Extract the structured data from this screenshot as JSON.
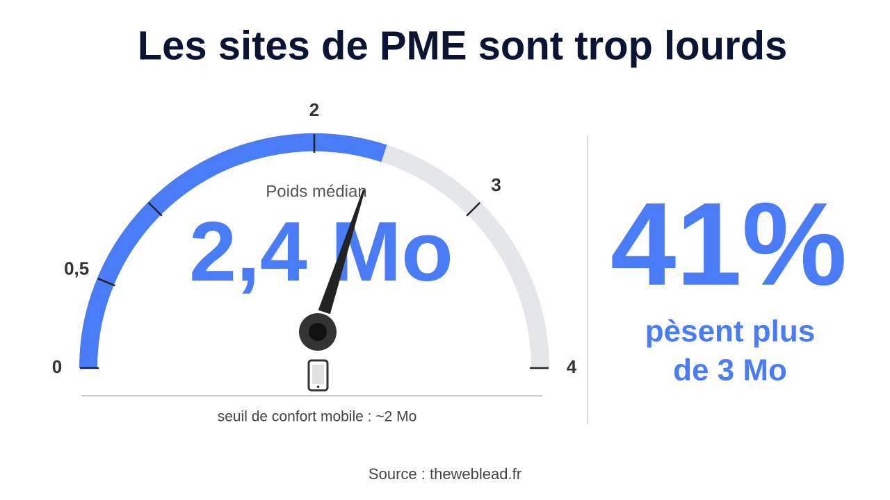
{
  "chart_data": {
    "type": "gauge",
    "title": "Les sites de PME sont trop lourds",
    "label": "Poids médian",
    "value": 2.4,
    "value_label": "2,4 Mo",
    "color": "#4a7cf7",
    "track_color": "#e5e6e9",
    "ylim": [
      0,
      4
    ],
    "yticks": [
      0,
      {
        "value": 0.5,
        "label": "0,5"
      },
      {
        "value": 1,
        "label": null
      },
      2,
      3,
      4
    ],
    "annotation": "seuil de confort mobile : ~2 Mo",
    "stat": {
      "value": 41,
      "value_label": "41%",
      "text": [
        "pèsent plus",
        "de 3 Mo"
      ]
    },
    "source": "Source : theweblead.fr"
  }
}
